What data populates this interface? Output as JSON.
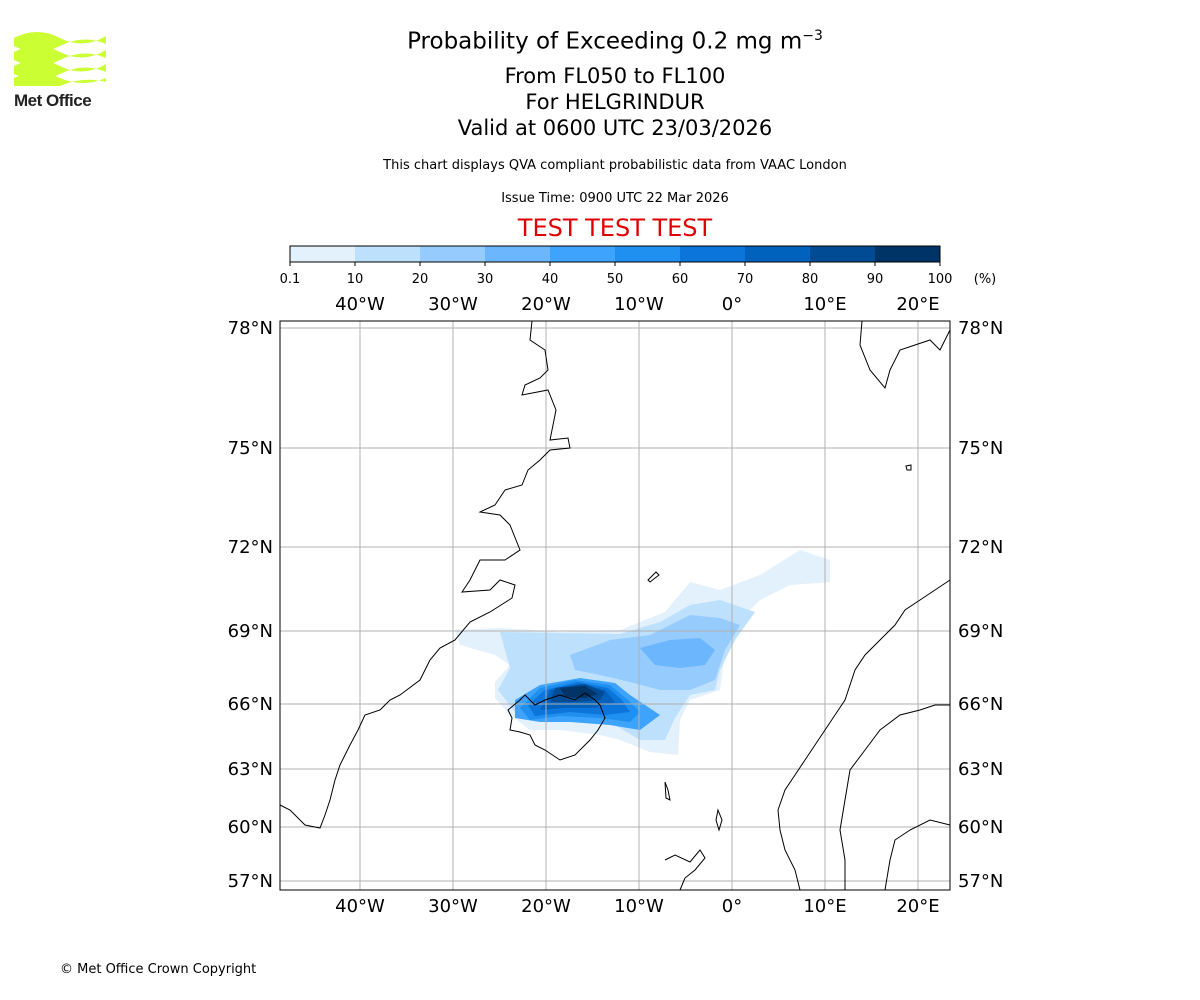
{
  "logo": {
    "text": "Met Office",
    "color": "#ccff33"
  },
  "title": {
    "main": "Probability of Exceeding 0.2 mg m",
    "main_sup": "−3",
    "levels": "From FL050 to FL100",
    "volcano": "For HELGRINDUR",
    "valid": "Valid at 0600 UTC 23/03/2026"
  },
  "subtitle": "This chart displays QVA compliant probabilistic data from VAAC London",
  "issue_time": "Issue Time: 0900 UTC 22 Mar 2026",
  "test_banner": "TEST TEST TEST",
  "colorbar": {
    "ticks": [
      "0.1",
      "10",
      "20",
      "30",
      "40",
      "50",
      "60",
      "70",
      "80",
      "90",
      "100"
    ],
    "unit": "(%)",
    "colors": [
      "#e3f1fd",
      "#bde0fd",
      "#96cbfd",
      "#6bb6fd",
      "#3ea3fd",
      "#1f8ff0",
      "#0c75db",
      "#0062bd",
      "#004b94",
      "#003366"
    ]
  },
  "map": {
    "lon_labels": [
      "40°W",
      "30°W",
      "20°W",
      "10°W",
      "0°",
      "10°E",
      "20°E"
    ],
    "lat_labels": [
      "78°N",
      "75°N",
      "72°N",
      "69°N",
      "66°N",
      "63°N",
      "60°N",
      "57°N"
    ]
  },
  "copyright": "© Met Office Crown Copyright"
}
